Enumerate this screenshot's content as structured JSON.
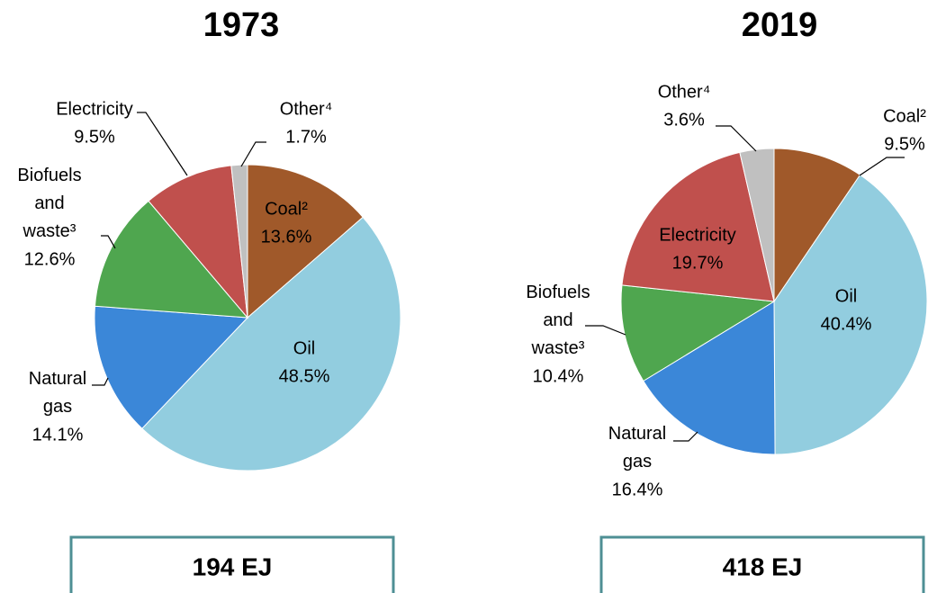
{
  "chart_data": [
    {
      "type": "pie",
      "title": "1973",
      "categories": [
        "Coal²",
        "Oil",
        "Natural gas",
        "Biofuels and waste³",
        "Electricity",
        "Other⁴"
      ],
      "values": [
        13.6,
        48.5,
        14.1,
        12.6,
        9.5,
        1.7
      ],
      "value_labels": [
        "13.6%",
        "48.5%",
        "14.1%",
        "12.6%",
        "9.5%",
        "1.7%"
      ],
      "colors": [
        "#a0592a",
        "#92cddf",
        "#3b87d8",
        "#4fa64f",
        "#c0504d",
        "#c0c0c0"
      ],
      "total": "194 EJ"
    },
    {
      "type": "pie",
      "title": "2019",
      "categories": [
        "Coal²",
        "Oil",
        "Natural gas",
        "Biofuels and waste³",
        "Electricity",
        "Other⁴"
      ],
      "values": [
        9.5,
        40.4,
        16.4,
        10.4,
        19.7,
        3.6
      ],
      "value_labels": [
        "9.5%",
        "40.4%",
        "16.4%",
        "10.4%",
        "19.7%",
        "3.6%"
      ],
      "colors": [
        "#a0592a",
        "#92cddf",
        "#3b87d8",
        "#4fa64f",
        "#c0504d",
        "#c0c0c0"
      ],
      "total": "418 EJ"
    }
  ]
}
